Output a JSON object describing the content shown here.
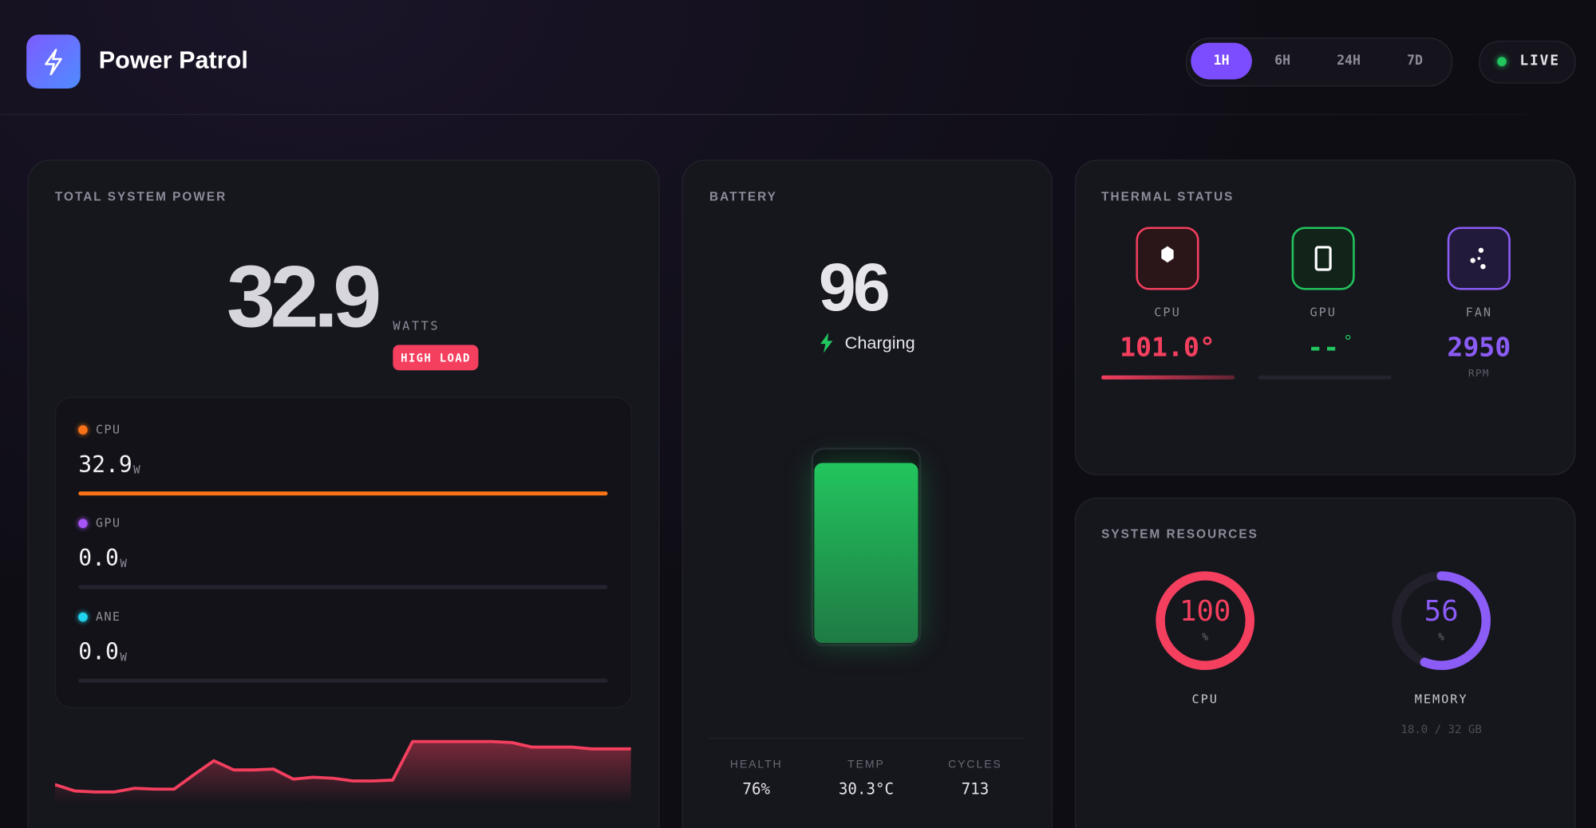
{
  "header": {
    "title": "Power Patrol",
    "time_ranges": [
      "1H",
      "6H",
      "24H",
      "7D"
    ],
    "live": "LIVE"
  },
  "power": {
    "label": "TOTAL SYSTEM POWER",
    "total": 32.9,
    "unit": "WATTS",
    "badge": "HIGH LOAD",
    "components": [
      {
        "name": "CPU",
        "color": "#f97316",
        "value": 32.9,
        "unit": "W"
      },
      {
        "name": "GPU",
        "color": "#a855f7",
        "value": {
          "value": 0,
          "label": "0.0"
        },
        "unit": "W"
      },
      {
        "name": "ANE",
        "color": "#22d3ee",
        "value": {
          "value": 0,
          "label": "0.0"
        },
        "unit": "W"
      }
    ],
    "history": {
      "type": "area",
      "color": "#f43f5e",
      "values": [
        11.5,
        7.7,
        7.1,
        7.1,
        9.3,
        8.8,
        8.8,
        17.5,
        25.8,
        20.3,
        20.3,
        20.8,
        14.8,
        15.9,
        15.3,
        13.7,
        13.7,
        14.2,
        37.3,
        37.3,
        37.3,
        37.3,
        37.3,
        36.7,
        34.0,
        34.0,
        34.0,
        32.9,
        32.9,
        32.9
      ]
    }
  },
  "battery": {
    "label": "BATTERY",
    "level": 96,
    "status": "Charging",
    "color": "#22c55e",
    "stats": [
      {
        "label": "HEALTH",
        "value": "76%"
      },
      {
        "label": "TEMP",
        "value": "30.3°C"
      },
      {
        "label": "CYCLES",
        "value": 713
      }
    ]
  },
  "thermal": {
    "label": "THERMAL STATUS",
    "sensors": [
      {
        "name": "CPU",
        "value": "101.0°",
        "color": "#f43f5e"
      },
      {
        "name": "GPU",
        "value": "--",
        "unit": "°",
        "color": "#22c55e"
      },
      {
        "name": "FAN",
        "value": 2950,
        "unit": "RPM",
        "color": "#8b5cf6"
      }
    ]
  },
  "resources": {
    "label": "SYSTEM RESOURCES",
    "gauges": [
      {
        "name": "CPU",
        "value": 100,
        "unit": "%",
        "color": "#f43f5e"
      },
      {
        "name": "MEMORY",
        "value": 56,
        "unit": "%",
        "color": "#8b5cf6",
        "detail": "18.0 / 32 GB"
      }
    ]
  }
}
